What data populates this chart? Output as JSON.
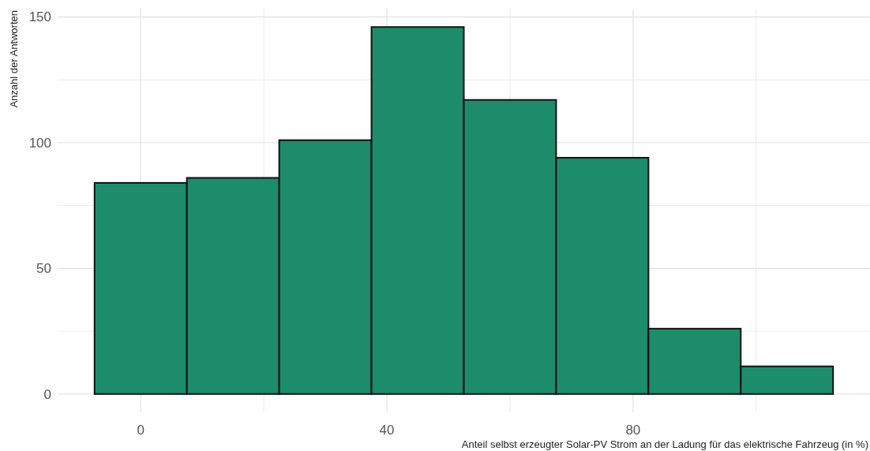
{
  "chart_data": {
    "type": "histogram",
    "xlabel": "Anteil selbst erzeugter Solar-PV Strom an der Ladung für das elektrische Fahrzeug (in %)",
    "ylabel": "Anzahl der Antworten",
    "bins": [
      -7.5,
      7.5,
      22.5,
      37.5,
      52.5,
      67.5,
      82.5,
      97.5,
      112.5
    ],
    "values": [
      84,
      86,
      101,
      146,
      117,
      94,
      26,
      11
    ],
    "color": "#1d8c6b",
    "xlim": [
      -13.5,
      118.5
    ],
    "ylim": [
      -7.3,
      153.3
    ],
    "xticks": [
      0,
      {
        "value": 20,
        "label": null
      },
      40,
      {
        "value": 60,
        "label": null
      },
      80,
      {
        "value": 100,
        "label": null
      }
    ],
    "yticks": [
      0,
      {
        "value": 25,
        "label": null
      },
      50,
      {
        "value": 75,
        "label": null
      },
      100,
      {
        "value": 125,
        "label": null
      },
      150
    ],
    "grid": true
  }
}
